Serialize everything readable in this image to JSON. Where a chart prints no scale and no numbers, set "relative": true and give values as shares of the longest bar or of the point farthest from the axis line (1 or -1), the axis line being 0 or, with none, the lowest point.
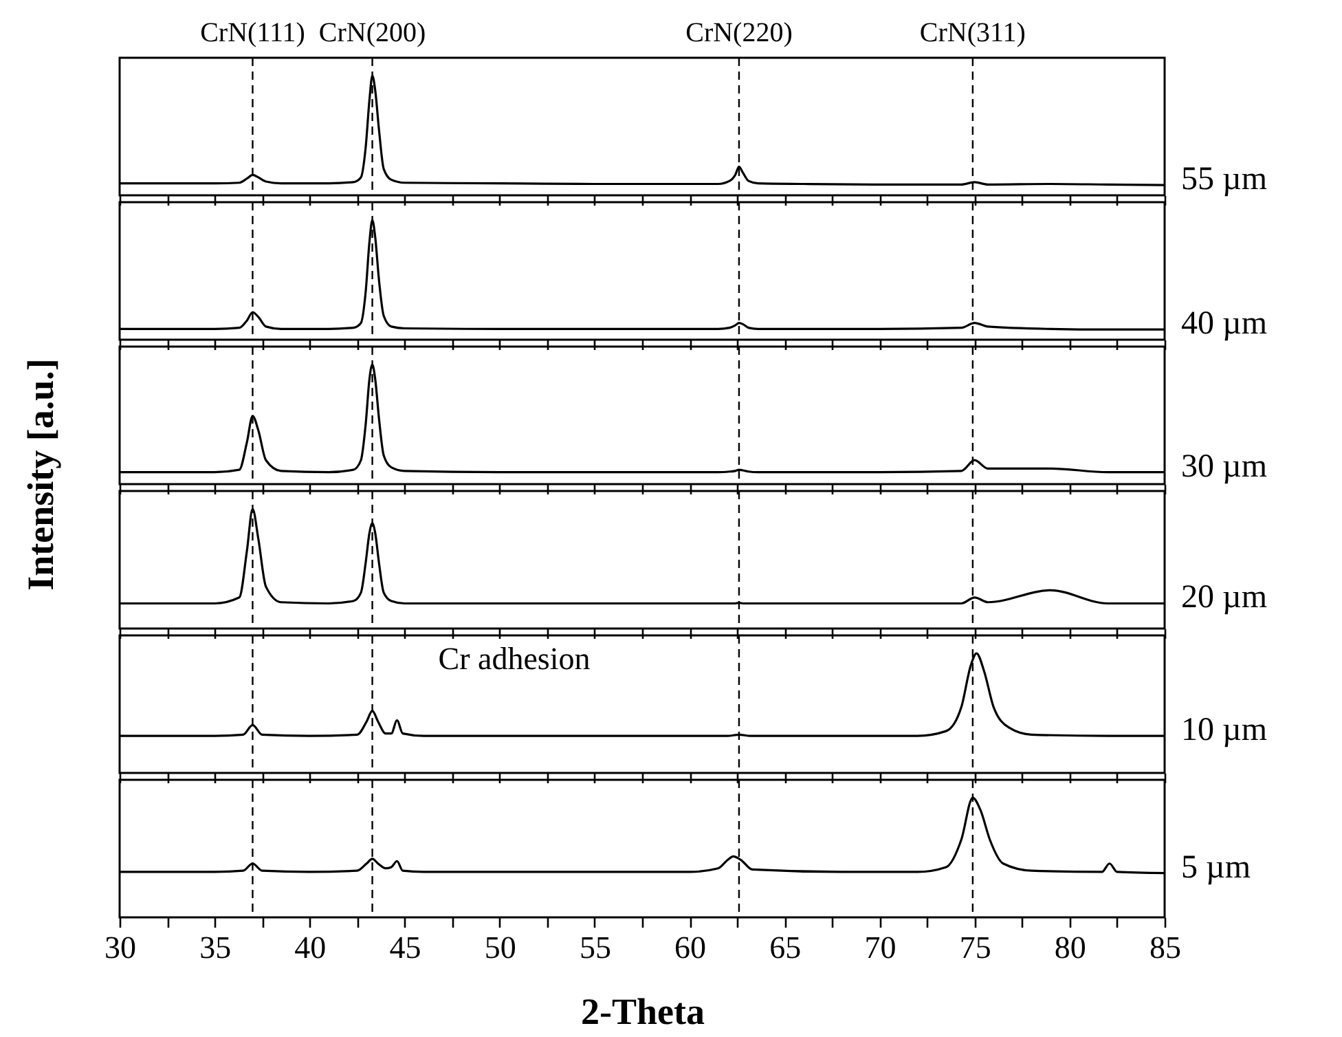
{
  "chart_data": [
    {
      "type": "line",
      "relative": true,
      "xlim": [
        30,
        85
      ],
      "xticks": [
        30,
        {
          "value": 32.5,
          "label": null
        },
        35,
        {
          "value": 37.5,
          "label": null
        },
        40,
        {
          "value": 42.5,
          "label": null
        },
        45,
        {
          "value": 47.5,
          "label": null
        },
        50,
        {
          "value": 52.5,
          "label": null
        },
        55,
        {
          "value": 57.5,
          "label": null
        },
        60,
        {
          "value": 62.5,
          "label": null
        },
        65,
        {
          "value": 67.5,
          "label": null
        },
        70,
        {
          "value": 72.5,
          "label": null
        },
        75,
        {
          "value": 77.5,
          "label": null
        },
        80,
        {
          "value": 82.5,
          "label": null
        },
        85
      ],
      "tick_labels": false,
      "ref_lines": [
        {
          "axis": "x",
          "value": 37.0,
          "label": "CrN(111)",
          "color": "#000000",
          "line_style": "dashed"
        },
        {
          "axis": "x",
          "value": 43.3,
          "label": "CrN(200)",
          "color": "#000000",
          "line_style": "dashed"
        },
        {
          "axis": "x",
          "value": 62.6,
          "label": "CrN(220)",
          "color": "#000000",
          "line_style": "dashed"
        },
        {
          "axis": "x",
          "value": 74.9,
          "label": "CrN(311)",
          "color": "#000000",
          "line_style": "dashed"
        }
      ],
      "x": [
        30,
        33,
        35,
        36.3,
        36.7,
        37.0,
        37.3,
        37.7,
        38.5,
        41,
        42.3,
        42.7,
        42.95,
        43.15,
        43.3,
        43.45,
        43.65,
        43.9,
        44.3,
        45,
        50,
        55,
        61.5,
        62.1,
        62.4,
        62.6,
        62.8,
        63.1,
        63.6,
        66,
        70,
        74.3,
        75.0,
        75.7,
        79,
        82,
        85
      ],
      "series": [
        {
          "name": "55 µm",
          "color": "#000000",
          "values": [
            0.1,
            0.1,
            0.1,
            0.105,
            0.14,
            0.17,
            0.15,
            0.115,
            0.1,
            0.1,
            0.11,
            0.15,
            0.4,
            0.8,
            1,
            0.88,
            0.55,
            0.22,
            0.13,
            0.105,
            0.1,
            0.095,
            0.095,
            0.12,
            0.17,
            0.24,
            0.19,
            0.12,
            0.1,
            0.095,
            0.09,
            0.09,
            0.11,
            0.09,
            0.095,
            0.09,
            0.085
          ]
        }
      ]
    },
    {
      "type": "line",
      "relative": true,
      "xlim": [
        30,
        85
      ],
      "xticks": [
        30,
        {
          "value": 32.5,
          "label": null
        },
        35,
        {
          "value": 37.5,
          "label": null
        },
        40,
        {
          "value": 42.5,
          "label": null
        },
        45,
        {
          "value": 47.5,
          "label": null
        },
        50,
        {
          "value": 52.5,
          "label": null
        },
        55,
        {
          "value": 57.5,
          "label": null
        },
        60,
        {
          "value": 62.5,
          "label": null
        },
        65,
        {
          "value": 67.5,
          "label": null
        },
        70,
        {
          "value": 72.5,
          "label": null
        },
        75,
        {
          "value": 77.5,
          "label": null
        },
        80,
        {
          "value": 82.5,
          "label": null
        },
        85
      ],
      "tick_labels": false,
      "ref_lines": [
        {
          "axis": "x",
          "value": 37.0,
          "color": "#000000",
          "line_style": "dashed"
        },
        {
          "axis": "x",
          "value": 43.3,
          "color": "#000000",
          "line_style": "dashed"
        },
        {
          "axis": "x",
          "value": 62.6,
          "color": "#000000",
          "line_style": "dashed"
        },
        {
          "axis": "x",
          "value": 74.9,
          "color": "#000000",
          "line_style": "dashed"
        }
      ],
      "x": [
        30,
        33,
        35,
        36.3,
        36.7,
        37.0,
        37.3,
        37.7,
        38.5,
        41,
        42.3,
        42.7,
        42.95,
        43.15,
        43.3,
        43.45,
        43.65,
        43.9,
        44.3,
        45,
        50,
        55,
        61.5,
        62.1,
        62.4,
        62.6,
        62.8,
        63.1,
        63.6,
        66,
        70,
        74.3,
        75.0,
        75.7,
        79,
        82,
        85
      ],
      "series": [
        {
          "name": "40 µm",
          "color": "#000000",
          "values": [
            0.09,
            0.09,
            0.09,
            0.1,
            0.16,
            0.23,
            0.19,
            0.11,
            0.09,
            0.09,
            0.1,
            0.14,
            0.4,
            0.82,
            1,
            0.86,
            0.5,
            0.2,
            0.11,
            0.095,
            0.09,
            0.09,
            0.09,
            0.1,
            0.12,
            0.14,
            0.13,
            0.1,
            0.09,
            0.09,
            0.09,
            0.1,
            0.14,
            0.11,
            0.09,
            0.085,
            0.085
          ]
        }
      ]
    },
    {
      "type": "line",
      "relative": true,
      "ylabel": "Intensity [a.u.]",
      "xlim": [
        30,
        85
      ],
      "xticks": [
        30,
        {
          "value": 32.5,
          "label": null
        },
        35,
        {
          "value": 37.5,
          "label": null
        },
        40,
        {
          "value": 42.5,
          "label": null
        },
        45,
        {
          "value": 47.5,
          "label": null
        },
        50,
        {
          "value": 52.5,
          "label": null
        },
        55,
        {
          "value": 57.5,
          "label": null
        },
        60,
        {
          "value": 62.5,
          "label": null
        },
        65,
        {
          "value": 67.5,
          "label": null
        },
        70,
        {
          "value": 72.5,
          "label": null
        },
        75,
        {
          "value": 77.5,
          "label": null
        },
        80,
        {
          "value": 82.5,
          "label": null
        },
        85
      ],
      "tick_labels": false,
      "ref_lines": [
        {
          "axis": "x",
          "value": 37.0,
          "color": "#000000",
          "line_style": "dashed"
        },
        {
          "axis": "x",
          "value": 43.3,
          "color": "#000000",
          "line_style": "dashed"
        },
        {
          "axis": "x",
          "value": 62.6,
          "color": "#000000",
          "line_style": "dashed"
        },
        {
          "axis": "x",
          "value": 74.9,
          "color": "#000000",
          "line_style": "dashed"
        }
      ],
      "x": [
        30,
        33,
        35,
        36.3,
        36.7,
        37.0,
        37.3,
        37.7,
        38.5,
        41,
        42.3,
        42.7,
        42.95,
        43.15,
        43.3,
        43.45,
        43.65,
        43.9,
        44.3,
        45,
        50,
        55,
        61.5,
        62.1,
        62.4,
        62.6,
        62.8,
        63.1,
        63.6,
        66,
        70,
        74.3,
        75.0,
        75.7,
        79,
        82,
        85
      ],
      "series": [
        {
          "name": "30 µm",
          "color": "#000000",
          "values": [
            0.1,
            0.1,
            0.1,
            0.12,
            0.35,
            0.57,
            0.45,
            0.2,
            0.11,
            0.1,
            0.12,
            0.2,
            0.5,
            0.88,
            1,
            0.88,
            0.55,
            0.24,
            0.14,
            0.11,
            0.1,
            0.1,
            0.1,
            0.105,
            0.11,
            0.12,
            0.115,
            0.105,
            0.1,
            0.1,
            0.1,
            0.11,
            0.2,
            0.13,
            0.13,
            0.1,
            0.1
          ]
        }
      ]
    },
    {
      "type": "line",
      "relative": true,
      "xlim": [
        30,
        85
      ],
      "xticks": [
        30,
        {
          "value": 32.5,
          "label": null
        },
        35,
        {
          "value": 37.5,
          "label": null
        },
        40,
        {
          "value": 42.5,
          "label": null
        },
        45,
        {
          "value": 47.5,
          "label": null
        },
        50,
        {
          "value": 52.5,
          "label": null
        },
        55,
        {
          "value": 57.5,
          "label": null
        },
        60,
        {
          "value": 62.5,
          "label": null
        },
        65,
        {
          "value": 67.5,
          "label": null
        },
        70,
        {
          "value": 72.5,
          "label": null
        },
        75,
        {
          "value": 77.5,
          "label": null
        },
        80,
        {
          "value": 82.5,
          "label": null
        },
        85
      ],
      "tick_labels": false,
      "ref_lines": [
        {
          "axis": "x",
          "value": 37.0,
          "color": "#000000",
          "line_style": "dashed"
        },
        {
          "axis": "x",
          "value": 43.3,
          "color": "#000000",
          "line_style": "dashed"
        },
        {
          "axis": "x",
          "value": 62.6,
          "color": "#000000",
          "line_style": "dashed"
        },
        {
          "axis": "x",
          "value": 74.9,
          "color": "#000000",
          "line_style": "dashed"
        }
      ],
      "x": [
        30,
        33,
        35,
        36.3,
        36.7,
        37.0,
        37.3,
        37.7,
        38.5,
        41,
        42.3,
        42.7,
        42.95,
        43.15,
        43.3,
        43.45,
        43.65,
        43.9,
        44.3,
        45,
        50,
        55,
        61.5,
        62.1,
        62.4,
        62.6,
        62.8,
        63.1,
        63.6,
        66,
        70,
        74.3,
        75.0,
        75.7,
        79,
        82,
        85
      ],
      "series": [
        {
          "name": "20 µm",
          "color": "#000000",
          "values": [
            0.21,
            0.21,
            0.21,
            0.26,
            0.65,
            1,
            0.75,
            0.35,
            0.22,
            0.21,
            0.23,
            0.3,
            0.55,
            0.8,
            0.88,
            0.8,
            0.55,
            0.3,
            0.23,
            0.21,
            0.21,
            0.21,
            0.21,
            0.21,
            0.21,
            0.215,
            0.21,
            0.21,
            0.21,
            0.21,
            0.21,
            0.21,
            0.26,
            0.22,
            0.32,
            0.21,
            0.21
          ]
        }
      ]
    },
    {
      "type": "line",
      "relative": true,
      "xlim": [
        30,
        85
      ],
      "xticks": [
        30,
        {
          "value": 32.5,
          "label": null
        },
        35,
        {
          "value": 37.5,
          "label": null
        },
        40,
        {
          "value": 42.5,
          "label": null
        },
        45,
        {
          "value": 47.5,
          "label": null
        },
        50,
        {
          "value": 52.5,
          "label": null
        },
        55,
        {
          "value": 57.5,
          "label": null
        },
        60,
        {
          "value": 62.5,
          "label": null
        },
        65,
        {
          "value": 67.5,
          "label": null
        },
        70,
        {
          "value": 72.5,
          "label": null
        },
        75,
        {
          "value": 77.5,
          "label": null
        },
        80,
        {
          "value": 82.5,
          "label": null
        },
        85
      ],
      "tick_labels": false,
      "ref_lines": [
        {
          "axis": "x",
          "value": 37.0,
          "color": "#000000",
          "line_style": "dashed"
        },
        {
          "axis": "x",
          "value": 43.3,
          "color": "#000000",
          "line_style": "dashed"
        },
        {
          "axis": "x",
          "value": 62.6,
          "color": "#000000",
          "line_style": "dashed"
        },
        {
          "axis": "x",
          "value": 74.9,
          "color": "#000000",
          "line_style": "dashed"
        }
      ],
      "annotations": [
        {
          "text": "Cr adhesion",
          "x": 44.6,
          "y": 0.44
        }
      ],
      "x": [
        30,
        33,
        35,
        36.5,
        37.0,
        37.5,
        40,
        42.5,
        43.0,
        43.3,
        43.6,
        44.0,
        44.3,
        44.6,
        44.9,
        46,
        50,
        55,
        62,
        62.6,
        63.2,
        68,
        72,
        73.5,
        74.3,
        74.8,
        75.1,
        75.5,
        76.0,
        76.8,
        78,
        82,
        85
      ],
      "series": [
        {
          "name": "10 µm",
          "color": "#000000",
          "values": [
            0.31,
            0.31,
            0.31,
            0.32,
            0.4,
            0.32,
            0.31,
            0.32,
            0.43,
            0.52,
            0.43,
            0.33,
            0.33,
            0.44,
            0.33,
            0.31,
            0.31,
            0.31,
            0.31,
            0.32,
            0.31,
            0.31,
            0.31,
            0.35,
            0.55,
            0.9,
            1,
            0.85,
            0.55,
            0.38,
            0.32,
            0.31,
            0.31
          ]
        }
      ]
    },
    {
      "type": "line",
      "relative": true,
      "xlabel": "2-Theta",
      "xlim": [
        30,
        85
      ],
      "xticks": [
        30,
        {
          "value": 32.5,
          "label": null
        },
        35,
        {
          "value": 37.5,
          "label": null
        },
        40,
        {
          "value": 42.5,
          "label": null
        },
        45,
        {
          "value": 47.5,
          "label": null
        },
        50,
        {
          "value": 52.5,
          "label": null
        },
        55,
        {
          "value": 57.5,
          "label": null
        },
        60,
        {
          "value": 62.5,
          "label": null
        },
        65,
        {
          "value": 67.5,
          "label": null
        },
        70,
        {
          "value": 72.5,
          "label": null
        },
        75,
        {
          "value": 77.5,
          "label": null
        },
        80,
        {
          "value": 82.5,
          "label": null
        },
        85
      ],
      "tick_labels": "x",
      "ref_lines": [
        {
          "axis": "x",
          "value": 37.0,
          "color": "#000000",
          "line_style": "dashed"
        },
        {
          "axis": "x",
          "value": 43.3,
          "color": "#000000",
          "line_style": "dashed"
        },
        {
          "axis": "x",
          "value": 62.6,
          "color": "#000000",
          "line_style": "dashed"
        },
        {
          "axis": "x",
          "value": 74.9,
          "color": "#000000",
          "line_style": "dashed"
        }
      ],
      "x": [
        30,
        33,
        35,
        36.5,
        37.0,
        37.5,
        40,
        42.5,
        43.0,
        43.3,
        43.6,
        44.0,
        44.3,
        44.6,
        44.9,
        46,
        50,
        55,
        60,
        61.5,
        62.0,
        62.3,
        62.7,
        63.3,
        68,
        72,
        73.5,
        74.3,
        74.9,
        75.3,
        75.8,
        76.5,
        78,
        81.7,
        82.1,
        82.5,
        85
      ],
      "series": [
        {
          "name": "5 µm",
          "color": "#000000",
          "values": [
            0.38,
            0.38,
            0.38,
            0.39,
            0.45,
            0.39,
            0.38,
            0.39,
            0.45,
            0.49,
            0.45,
            0.41,
            0.42,
            0.47,
            0.39,
            0.38,
            0.38,
            0.38,
            0.38,
            0.41,
            0.48,
            0.51,
            0.48,
            0.4,
            0.38,
            0.38,
            0.42,
            0.65,
            1,
            0.9,
            0.65,
            0.45,
            0.39,
            0.38,
            0.45,
            0.38,
            0.37
          ]
        }
      ]
    }
  ]
}
